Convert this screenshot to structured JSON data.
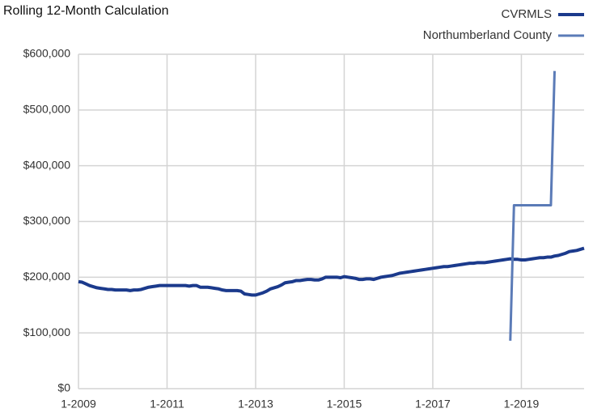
{
  "chart_data": {
    "type": "line",
    "title": "Rolling 12-Month Calculation",
    "categories": [
      "1-2009",
      null,
      null,
      null,
      null,
      null,
      null,
      null,
      null,
      null,
      null,
      null,
      null,
      null,
      null,
      null,
      null,
      null,
      null,
      null,
      null,
      null,
      null,
      null,
      "1-2011",
      null,
      null,
      null,
      null,
      null,
      null,
      null,
      null,
      null,
      null,
      null,
      null,
      null,
      null,
      null,
      null,
      null,
      null,
      null,
      null,
      null,
      null,
      null,
      "1-2013",
      null,
      null,
      null,
      null,
      null,
      null,
      null,
      null,
      null,
      null,
      null,
      null,
      null,
      null,
      null,
      null,
      null,
      null,
      null,
      null,
      null,
      null,
      null,
      "1-2015",
      null,
      null,
      null,
      null,
      null,
      null,
      null,
      null,
      null,
      null,
      null,
      null,
      null,
      null,
      null,
      null,
      null,
      null,
      null,
      null,
      null,
      null,
      null,
      "1-2017",
      null,
      null,
      null,
      null,
      null,
      null,
      null,
      null,
      null,
      null,
      null,
      null,
      null,
      null,
      null,
      null,
      null,
      null,
      null,
      null,
      null,
      null,
      null,
      "1-2019",
      null,
      null,
      null,
      null,
      null,
      null,
      null,
      null,
      null,
      null,
      null,
      null,
      null,
      null,
      null,
      null,
      null
    ],
    "series": [
      {
        "name": "CVRMLS",
        "color": "#1b3a8c",
        "values": [
          192000,
          191000,
          188000,
          185000,
          183000,
          181000,
          180000,
          179000,
          178000,
          178000,
          177000,
          177000,
          177000,
          177000,
          176000,
          177000,
          177000,
          178000,
          180000,
          182000,
          183000,
          184000,
          185000,
          185000,
          185000,
          185000,
          185000,
          185000,
          185000,
          185000,
          184000,
          185000,
          185000,
          182000,
          182000,
          182000,
          181000,
          180000,
          179000,
          177000,
          176000,
          176000,
          176000,
          176000,
          175000,
          170000,
          169000,
          168000,
          168000,
          170000,
          172000,
          175000,
          179000,
          181000,
          183000,
          186000,
          190000,
          191000,
          192000,
          194000,
          194000,
          195000,
          196000,
          196000,
          195000,
          195000,
          197000,
          200000,
          200000,
          200000,
          200000,
          199000,
          201000,
          200000,
          199000,
          198000,
          196000,
          196000,
          197000,
          197000,
          196000,
          198000,
          200000,
          201000,
          202000,
          203000,
          205000,
          207000,
          208000,
          209000,
          210000,
          211000,
          212000,
          213000,
          214000,
          215000,
          216000,
          217000,
          218000,
          219000,
          219000,
          220000,
          221000,
          222000,
          223000,
          224000,
          225000,
          225000,
          226000,
          226000,
          226000,
          227000,
          228000,
          229000,
          230000,
          231000,
          232000,
          233000,
          232000,
          232000,
          231000,
          231000,
          232000,
          233000,
          234000,
          235000,
          235000,
          236000,
          236000,
          238000,
          239000,
          241000,
          243000,
          246000,
          247000,
          248000,
          250000,
          252000
        ]
      },
      {
        "name": "Northumberland County",
        "color": "#5b7bb7",
        "values": [
          null,
          null,
          null,
          null,
          null,
          null,
          null,
          null,
          null,
          null,
          null,
          null,
          null,
          null,
          null,
          null,
          null,
          null,
          null,
          null,
          null,
          null,
          null,
          null,
          null,
          null,
          null,
          null,
          null,
          null,
          null,
          null,
          null,
          null,
          null,
          null,
          null,
          null,
          null,
          null,
          null,
          null,
          null,
          null,
          null,
          null,
          null,
          null,
          null,
          null,
          null,
          null,
          null,
          null,
          null,
          null,
          null,
          null,
          null,
          null,
          null,
          null,
          null,
          null,
          null,
          null,
          null,
          null,
          null,
          null,
          null,
          null,
          null,
          null,
          null,
          null,
          null,
          null,
          null,
          null,
          null,
          null,
          null,
          null,
          null,
          null,
          null,
          null,
          null,
          null,
          null,
          null,
          null,
          null,
          null,
          null,
          null,
          null,
          null,
          null,
          null,
          null,
          null,
          null,
          null,
          null,
          null,
          null,
          null,
          null,
          null,
          null,
          null,
          null,
          null,
          null,
          null,
          86000,
          329000,
          329000,
          329000,
          329000,
          329000,
          329000,
          329000,
          329000,
          329000,
          329000,
          329000,
          570000,
          null,
          null,
          null,
          null,
          null,
          null,
          null,
          null
        ]
      }
    ],
    "ylim": [
      0,
      600000
    ],
    "yticks": [
      {
        "value": 0,
        "label": "$0"
      },
      {
        "value": 100000,
        "label": "$100,000"
      },
      {
        "value": 200000,
        "label": "$200,000"
      },
      {
        "value": 300000,
        "label": "$300,000"
      },
      {
        "value": 400000,
        "label": "$400,000"
      },
      {
        "value": 500000,
        "label": "$500,000"
      },
      {
        "value": 600000,
        "label": "$600,000"
      }
    ],
    "grid": true,
    "legend": "top-right"
  }
}
